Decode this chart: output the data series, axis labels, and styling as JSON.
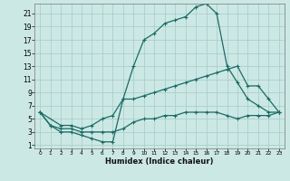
{
  "xlabel": "Humidex (Indice chaleur)",
  "bg_color": "#cce8e5",
  "grid_color": "#aad0cc",
  "line_color": "#1a6b64",
  "x_ticks": [
    0,
    1,
    2,
    3,
    4,
    5,
    6,
    7,
    8,
    9,
    10,
    11,
    12,
    13,
    14,
    15,
    16,
    17,
    18,
    19,
    20,
    21,
    22,
    23
  ],
  "y_ticks": [
    1,
    3,
    5,
    7,
    9,
    11,
    13,
    15,
    17,
    19,
    21
  ],
  "xlim": [
    -0.5,
    23.5
  ],
  "ylim": [
    0.5,
    22.5
  ],
  "line_max": {
    "x": [
      0,
      1,
      2,
      3,
      4,
      5,
      6,
      7,
      8,
      9,
      10,
      11,
      12,
      13,
      14,
      15,
      16,
      17,
      18,
      19,
      20,
      21,
      22,
      23
    ],
    "y": [
      6,
      4,
      3,
      3,
      2.5,
      2,
      1.5,
      1.5,
      8,
      13,
      17,
      18,
      19.5,
      20,
      20.5,
      22,
      22.5,
      21,
      13,
      10.5,
      8,
      7,
      6,
      6
    ]
  },
  "line_avg": {
    "x": [
      0,
      2,
      3,
      4,
      5,
      6,
      7,
      8,
      9,
      10,
      11,
      12,
      13,
      14,
      15,
      16,
      17,
      18,
      19,
      20,
      21,
      22,
      23
    ],
    "y": [
      6,
      4,
      4,
      3.5,
      4,
      5,
      5.5,
      8,
      8,
      8.5,
      9,
      9.5,
      10,
      10.5,
      11,
      11.5,
      12,
      12.5,
      13,
      10,
      10,
      8,
      6
    ]
  },
  "line_min": {
    "x": [
      0,
      1,
      2,
      3,
      4,
      5,
      6,
      7,
      8,
      9,
      10,
      11,
      12,
      13,
      14,
      15,
      16,
      17,
      18,
      19,
      20,
      21,
      22,
      23
    ],
    "y": [
      6,
      4,
      3.5,
      3.5,
      3,
      3,
      3,
      3,
      3.5,
      4.5,
      5,
      5,
      5.5,
      5.5,
      6,
      6,
      6,
      6,
      5.5,
      5,
      5.5,
      5.5,
      5.5,
      6
    ]
  }
}
